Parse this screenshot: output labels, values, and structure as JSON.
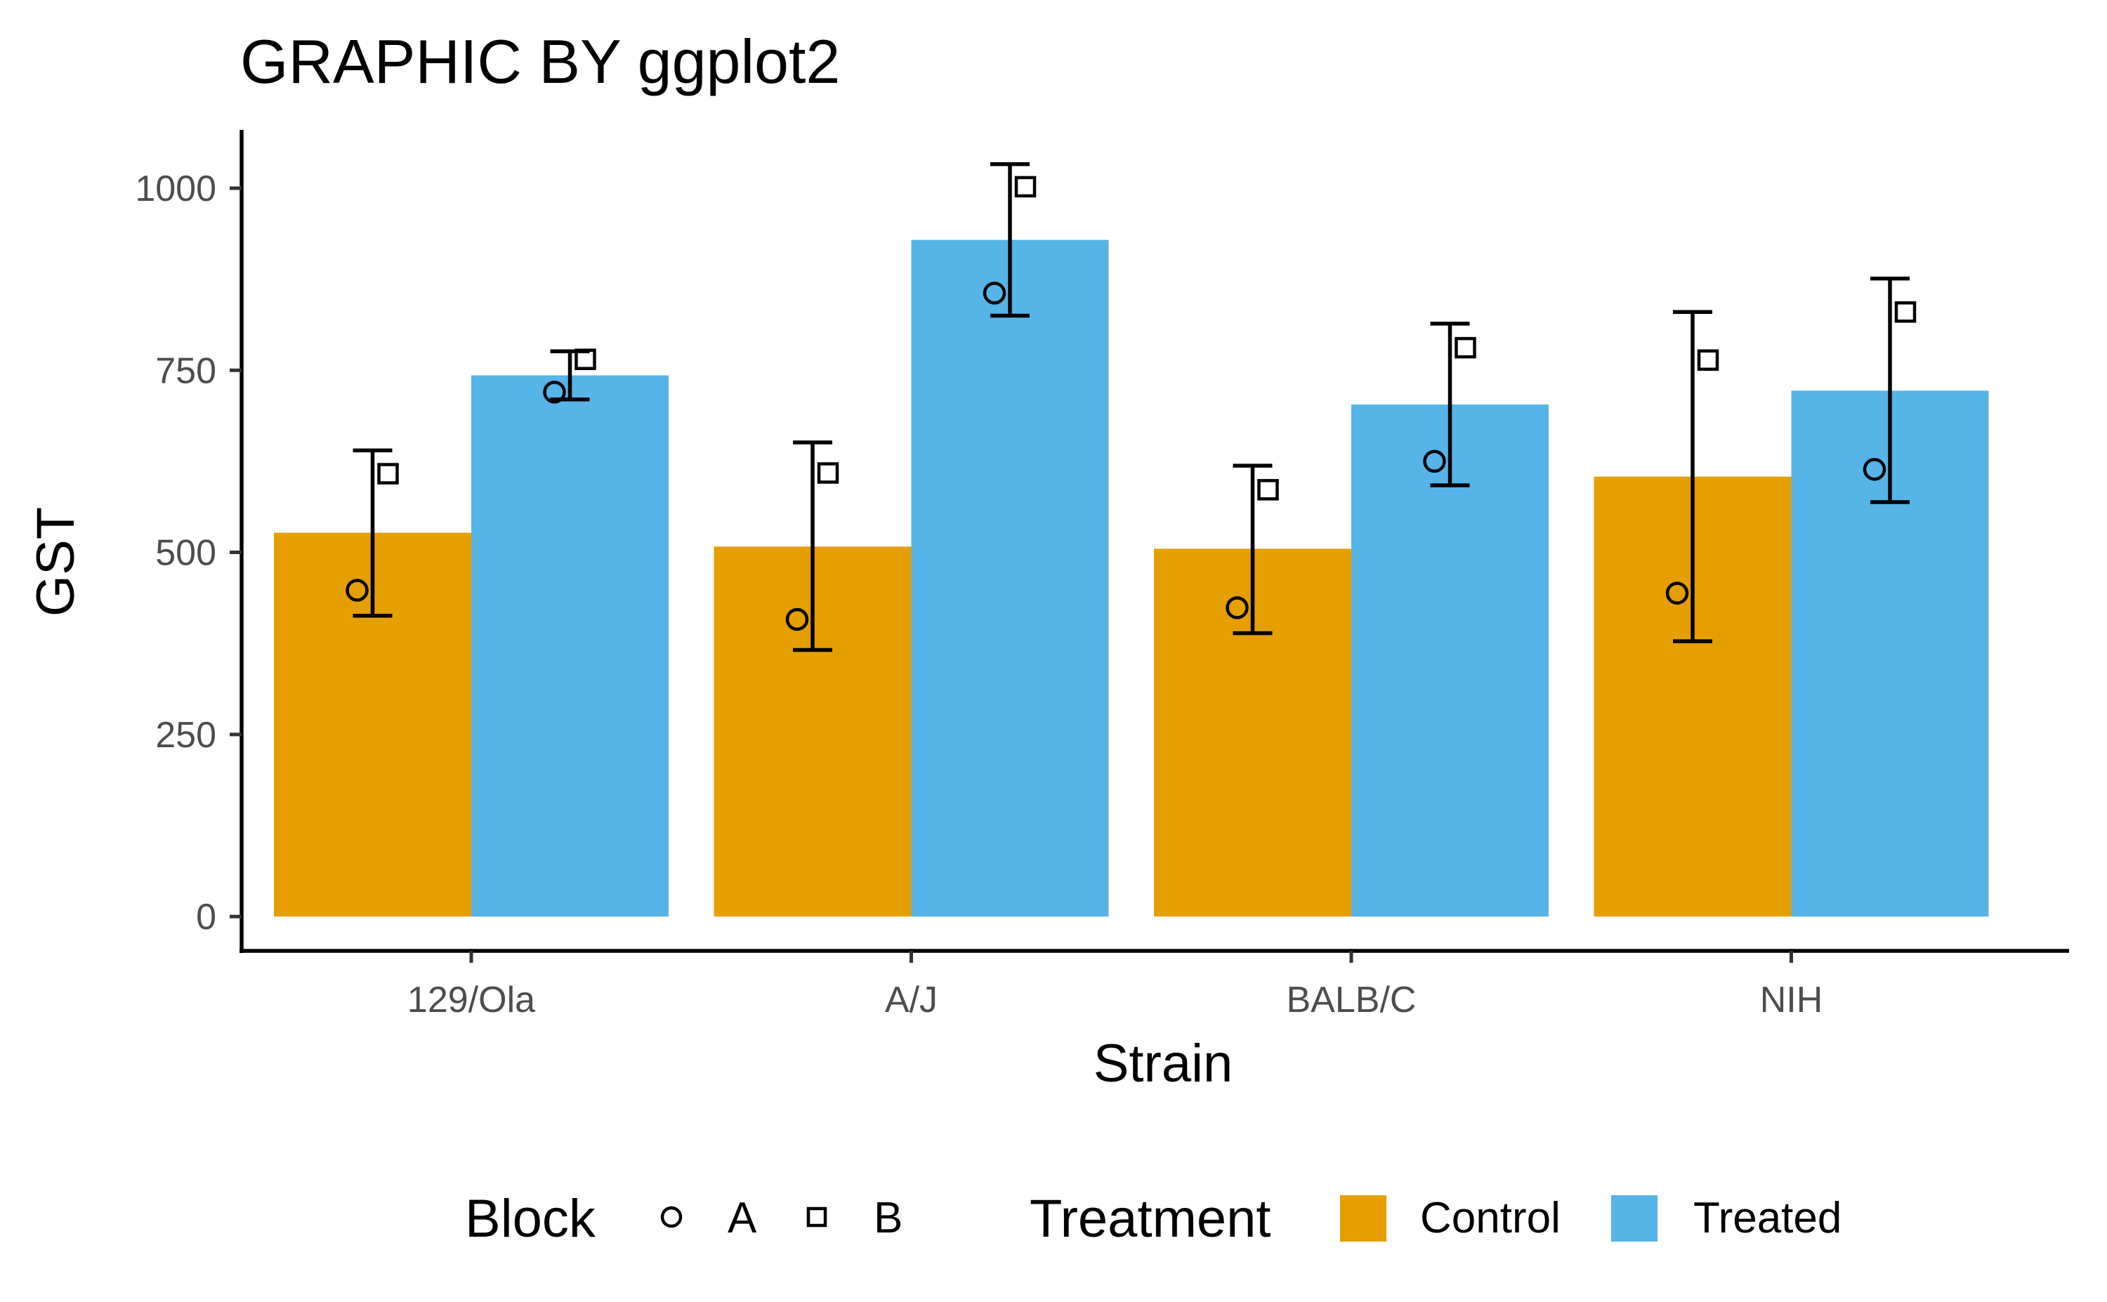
{
  "chart_data": {
    "type": "bar",
    "title": "GRAPHIC BY ggplot2",
    "xlabel": "Strain",
    "ylabel": "GST",
    "categories": [
      "129/Ola",
      "A/J",
      "BALB/C",
      "NIH"
    ],
    "ylim": [
      -50,
      1080
    ],
    "yticks": [
      0,
      250,
      500,
      750,
      1000
    ],
    "ytick_labels": [
      "0",
      "250",
      "500",
      "750",
      "1000"
    ],
    "grid": false,
    "colors": {
      "Control": "#E69F00",
      "Treated": "#56B4E9",
      "axis": "#000000",
      "tick_text": "#4d4d4d"
    },
    "series": [
      {
        "name": "Control",
        "values": [
          527,
          508,
          505,
          604
        ],
        "error_low": [
          413,
          366,
          389,
          378
        ],
        "error_high": [
          640,
          651,
          619,
          830
        ],
        "points": [
          {
            "block": "A",
            "value": 448
          },
          {
            "block": "B",
            "value": 608
          },
          {
            "block": "A",
            "value": 408
          },
          {
            "block": "B",
            "value": 609
          },
          {
            "block": "A",
            "value": 424
          },
          {
            "block": "B",
            "value": 586
          },
          {
            "block": "A",
            "value": 444
          },
          {
            "block": "B",
            "value": 764
          }
        ]
      },
      {
        "name": "Treated",
        "values": [
          743,
          929,
          703,
          722
        ],
        "error_low": [
          710,
          825,
          592,
          569
        ],
        "error_high": [
          776,
          1033,
          814,
          876
        ],
        "points": [
          {
            "block": "A",
            "value": 720
          },
          {
            "block": "B",
            "value": 765
          },
          {
            "block": "A",
            "value": 856
          },
          {
            "block": "B",
            "value": 1002
          },
          {
            "block": "A",
            "value": 625
          },
          {
            "block": "B",
            "value": 781
          },
          {
            "block": "A",
            "value": 614
          },
          {
            "block": "B",
            "value": 830
          }
        ]
      }
    ],
    "legend": {
      "position": "bottom",
      "block": {
        "title": "Block",
        "items": [
          "A",
          "B"
        ],
        "shapes": [
          "circle",
          "square"
        ]
      },
      "treatment": {
        "title": "Treatment",
        "items": [
          "Control",
          "Treated"
        ]
      }
    }
  }
}
